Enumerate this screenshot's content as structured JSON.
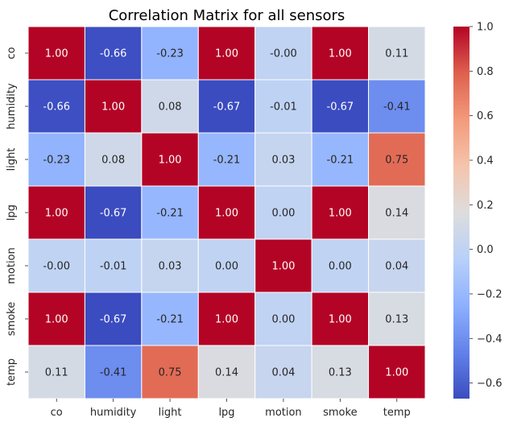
{
  "chart_data": {
    "type": "heatmap",
    "title": "Correlation Matrix for all sensors",
    "xlabel": "",
    "ylabel": "",
    "x_categories": [
      "co",
      "humidity",
      "light",
      "lpg",
      "motion",
      "smoke",
      "temp"
    ],
    "y_categories": [
      "co",
      "humidity",
      "light",
      "lpg",
      "motion",
      "smoke",
      "temp"
    ],
    "values": [
      [
        1.0,
        -0.66,
        -0.23,
        1.0,
        -0.0,
        1.0,
        0.11
      ],
      [
        -0.66,
        1.0,
        0.08,
        -0.67,
        -0.01,
        -0.67,
        -0.41
      ],
      [
        -0.23,
        0.08,
        1.0,
        -0.21,
        0.03,
        -0.21,
        0.75
      ],
      [
        1.0,
        -0.67,
        -0.21,
        1.0,
        0.0,
        1.0,
        0.14
      ],
      [
        -0.0,
        -0.01,
        0.03,
        0.0,
        1.0,
        0.0,
        0.04
      ],
      [
        1.0,
        -0.67,
        -0.21,
        1.0,
        0.0,
        1.0,
        0.13
      ],
      [
        0.11,
        -0.41,
        0.75,
        0.14,
        0.04,
        0.13,
        1.0
      ]
    ],
    "annotations": [
      [
        "1.00",
        "-0.66",
        "-0.23",
        "1.00",
        "-0.00",
        "1.00",
        "0.11"
      ],
      [
        "-0.66",
        "1.00",
        "0.08",
        "-0.67",
        "-0.01",
        "-0.67",
        "-0.41"
      ],
      [
        "-0.23",
        "0.08",
        "1.00",
        "-0.21",
        "0.03",
        "-0.21",
        "0.75"
      ],
      [
        "1.00",
        "-0.67",
        "-0.21",
        "1.00",
        "0.00",
        "1.00",
        "0.14"
      ],
      [
        "-0.00",
        "-0.01",
        "0.03",
        "0.00",
        "1.00",
        "0.00",
        "0.04"
      ],
      [
        "1.00",
        "-0.67",
        "-0.21",
        "1.00",
        "0.00",
        "1.00",
        "0.13"
      ],
      [
        "0.11",
        "-0.41",
        "0.75",
        "0.14",
        "0.04",
        "0.13",
        "1.00"
      ]
    ],
    "colormap": "coolwarm",
    "vmin": -0.67,
    "vmax": 1.0,
    "colorbar_ticks": [
      1.0,
      0.8,
      0.6,
      0.4,
      0.2,
      0.0,
      -0.2,
      -0.4,
      -0.6
    ],
    "colorbar_tick_labels": [
      "1.0",
      "0.8",
      "0.6",
      "0.4",
      "0.2",
      "0.0",
      "−0.2",
      "−0.4",
      "−0.6"
    ],
    "cell_border_color": "#ffffff",
    "grid": false,
    "legend": "colorbar-right"
  }
}
